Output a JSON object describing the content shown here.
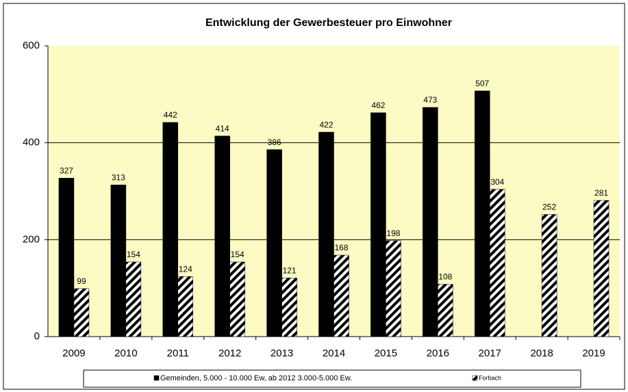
{
  "chart_data": {
    "type": "bar",
    "title": "Entwicklung  der Gewerbesteuer pro Einwohner",
    "categories": [
      "2009",
      "2010",
      "2011",
      "2012",
      "2013",
      "2014",
      "2015",
      "2016",
      "2017",
      "2018",
      "2019"
    ],
    "series": [
      {
        "name": "Gemeinden, 5.000 - 10.000 Ew, ab 2012 3.000-5.000 Ew.",
        "color": "#000000",
        "hatch": false,
        "values": [
          327,
          313,
          442,
          414,
          386,
          422,
          462,
          473,
          507,
          null,
          null
        ]
      },
      {
        "name": "Forbach",
        "color": "#000000",
        "hatch": true,
        "values": [
          99,
          154,
          124,
          154,
          121,
          168,
          198,
          108,
          304,
          252,
          281
        ]
      }
    ],
    "ylim": [
      0,
      600
    ],
    "yticks": [
      0,
      200,
      400,
      600
    ],
    "grid": true,
    "legend": "bottom"
  }
}
